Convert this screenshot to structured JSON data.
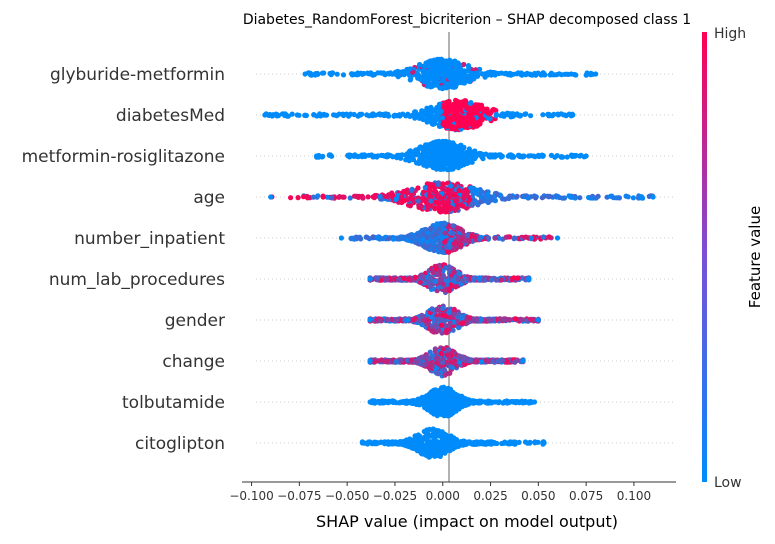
{
  "chart_data": {
    "type": "scatter",
    "subtype": "shap-beeswarm",
    "title": "Diabetes_RandomForest_bicriterion – SHAP decomposed class 1",
    "xlabel": "SHAP value (impact on model output)",
    "ylabel": "",
    "xlim": [
      -0.105,
      0.122
    ],
    "xticks": [
      -0.1,
      -0.075,
      -0.05,
      -0.025,
      0.0,
      0.025,
      0.05,
      0.075,
      0.1
    ],
    "xtick_labels": [
      "−0.100",
      "−0.075",
      "−0.050",
      "−0.025",
      "0.000",
      "0.025",
      "0.050",
      "0.075",
      "0.100"
    ],
    "grid": false,
    "colorbar": {
      "label": "Feature value",
      "high_label": "High",
      "low_label": "Low",
      "high_color": "#ff0052",
      "low_color": "#008bfb"
    },
    "features": [
      {
        "name": "glyburide-metformin",
        "min": -0.072,
        "max": 0.08,
        "core": [
          -0.008,
          0.008
        ],
        "peak": 0.0,
        "red_mode": "scattered-center"
      },
      {
        "name": "diabetesMed",
        "min": -0.093,
        "max": 0.068,
        "core": [
          0.0,
          0.018
        ],
        "peak": 0.008,
        "red_mode": "right-core"
      },
      {
        "name": "metformin-rosiglitazone",
        "min": -0.066,
        "max": 0.075,
        "core": [
          -0.008,
          0.008
        ],
        "peak": 0.0,
        "red_mode": "none"
      },
      {
        "name": "age",
        "min": -0.09,
        "max": 0.11,
        "core": [
          -0.015,
          0.015
        ],
        "peak": 0.0,
        "red_mode": "left-spread"
      },
      {
        "name": "number_inpatient",
        "min": -0.053,
        "max": 0.06,
        "core": [
          -0.01,
          0.01
        ],
        "peak": 0.0,
        "red_mode": "right-spread"
      },
      {
        "name": "num_lab_procedures",
        "min": -0.038,
        "max": 0.045,
        "core": [
          -0.025,
          0.025
        ],
        "peak": 0.0,
        "red_mode": "mixed"
      },
      {
        "name": "gender",
        "min": -0.038,
        "max": 0.05,
        "core": [
          -0.02,
          0.02
        ],
        "peak": 0.0,
        "red_mode": "mixed"
      },
      {
        "name": "change",
        "min": -0.038,
        "max": 0.042,
        "core": [
          -0.02,
          0.02
        ],
        "peak": 0.0,
        "red_mode": "mixed"
      },
      {
        "name": "tolbutamide",
        "min": -0.038,
        "max": 0.048,
        "core": [
          -0.01,
          0.01
        ],
        "peak": 0.0,
        "red_mode": "none"
      },
      {
        "name": "citoglipton",
        "min": -0.042,
        "max": 0.053,
        "core": [
          -0.015,
          0.015
        ],
        "peak": -0.005,
        "red_mode": "none"
      }
    ]
  }
}
